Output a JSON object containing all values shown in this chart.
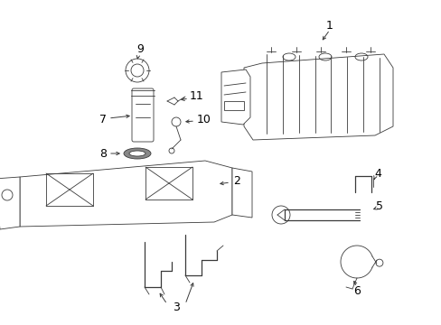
{
  "background_color": "#ffffff",
  "line_color": "#3a3a3a",
  "label_color": "#000000",
  "fig_width": 4.89,
  "fig_height": 3.6,
  "dpi": 100
}
